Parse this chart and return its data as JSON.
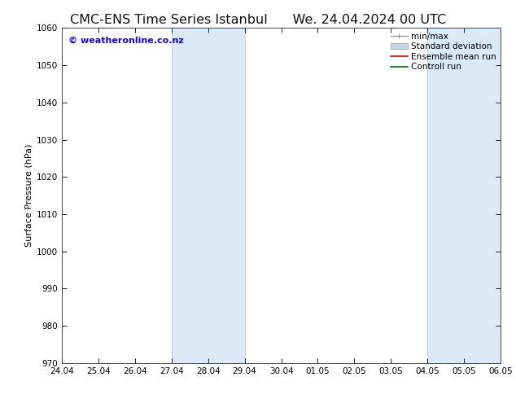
{
  "title_left": "CMC-ENS Time Series Istanbul",
  "title_right": "We. 24.04.2024 00 UTC",
  "ylabel": "Surface Pressure (hPa)",
  "ylim": [
    970,
    1060
  ],
  "yticks": [
    970,
    980,
    990,
    1000,
    1010,
    1020,
    1030,
    1040,
    1050,
    1060
  ],
  "xlim_start": 0,
  "xlim_end": 12,
  "xtick_labels": [
    "24.04",
    "25.04",
    "26.04",
    "27.04",
    "28.04",
    "29.04",
    "30.04",
    "01.05",
    "02.05",
    "03.05",
    "04.05",
    "05.05",
    "06.05"
  ],
  "shaded_bands": [
    {
      "x_start": 3,
      "x_end": 5
    },
    {
      "x_start": 10,
      "x_end": 12
    }
  ],
  "band_color": "#daeaf7",
  "band_edge_color": "#b8d4ec",
  "watermark_text": "© weatheronline.co.nz",
  "watermark_color": "#1a00ff",
  "legend_labels": [
    "min/max",
    "Standard deviation",
    "Ensemble mean run",
    "Controll run"
  ],
  "legend_colors_line": [
    "#999999",
    "#c0d8ea",
    "#dd0000",
    "#006600"
  ],
  "background_color": "#ffffff",
  "plot_bg_color": "#ffffff",
  "title_fontsize": 11.5,
  "axis_label_fontsize": 8,
  "tick_fontsize": 7.5,
  "watermark_fontsize": 8,
  "legend_fontsize": 7.5
}
